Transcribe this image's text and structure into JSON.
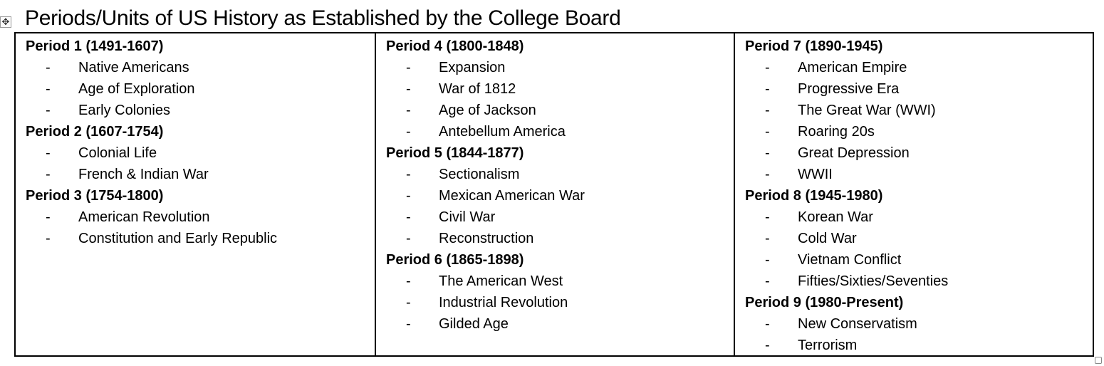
{
  "title": "Periods/Units of US History as Established by the College Board",
  "columns": [
    {
      "periods": [
        {
          "heading": "Period 1 (1491-1607)",
          "items": [
            "Native Americans",
            "Age of Exploration",
            "Early Colonies"
          ]
        },
        {
          "heading": "Period 2 (1607-1754)",
          "items": [
            "Colonial Life",
            "French & Indian War"
          ]
        },
        {
          "heading": "Period 3 (1754-1800)",
          "items": [
            "American Revolution",
            "Constitution and Early Republic"
          ]
        }
      ]
    },
    {
      "periods": [
        {
          "heading": "Period 4 (1800-1848)",
          "items": [
            "Expansion",
            "War of 1812",
            "Age of Jackson",
            "Antebellum America"
          ]
        },
        {
          "heading": "Period 5 (1844-1877)",
          "items": [
            "Sectionalism",
            "Mexican American War",
            "Civil War",
            "Reconstruction"
          ]
        },
        {
          "heading": "Period 6 (1865-1898)",
          "items": [
            "The American West",
            "Industrial Revolution",
            "Gilded Age"
          ]
        }
      ]
    },
    {
      "periods": [
        {
          "heading": "Period 7 (1890-1945)",
          "items": [
            "American Empire",
            "Progressive Era",
            "The Great War (WWI)",
            "Roaring 20s",
            "Great Depression",
            "WWII"
          ]
        },
        {
          "heading": "Period 8 (1945-1980)",
          "items": [
            "Korean War",
            "Cold War",
            "Vietnam Conflict",
            "Fifties/Sixties/Seventies"
          ]
        },
        {
          "heading": "Period 9 (1980-Present)",
          "items": [
            "New Conservatism",
            "Terrorism"
          ]
        }
      ]
    }
  ],
  "bullet": "-",
  "icons": {
    "table_move": "move-arrows-icon",
    "table_resize": "resize-handle-icon"
  }
}
